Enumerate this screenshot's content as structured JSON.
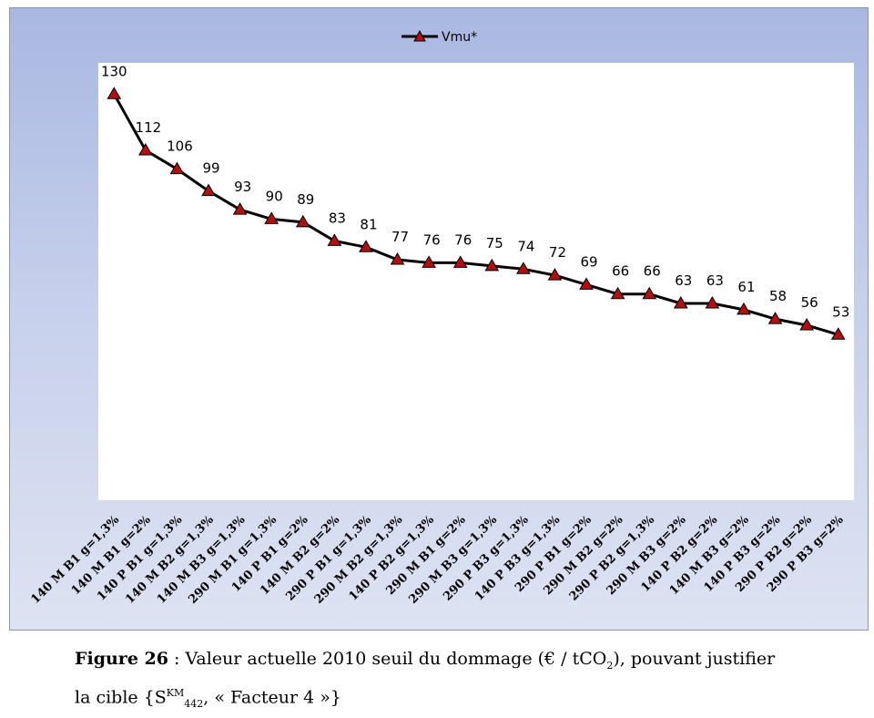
{
  "chart_data": {
    "type": "line",
    "categories": [
      "140 M B1 g=1,3%",
      "140 M B1 g=2%",
      "140 P B1 g=1,3%",
      "140 M B2 g=1,3%",
      "140 M B3 g=1,3%",
      "290 M B1 g=1,3%",
      "140 P B1 g=2%",
      "140 M B2 g=2%",
      "290 P B1 g=1,3%",
      "290 M B2 g=1,3%",
      "140 P B2 g=1,3%",
      "290 M B1 g=2%",
      "290 M B3 g=1,3%",
      "290 P B3 g=1,3%",
      "140 P B3 g=1,3%",
      "290 P B1 g=2%",
      "290 M B2 g=2%",
      "290 P B2 g=1,3%",
      "290 M B3 g=2%",
      "140 P B2 g=2%",
      "140 M B3 g=2%",
      "140 P B3 g=2%",
      "290 P B2 g=2%",
      "290 P B3 g=2%"
    ],
    "series": [
      {
        "name": "Vmu*",
        "values": [
          130,
          112,
          106,
          99,
          93,
          90,
          89,
          83,
          81,
          77,
          76,
          76,
          75,
          74,
          72,
          69,
          66,
          66,
          63,
          63,
          61,
          58,
          56,
          53
        ]
      }
    ],
    "ylim": [
      0,
      140
    ],
    "legend_position": "top-center",
    "grid": false,
    "colors": {
      "line": "#000000",
      "marker": "#b01010",
      "plot_bg": "#ffffff",
      "frame_top": "#a9b8e2",
      "frame_bottom": "#dde3f2"
    }
  },
  "caption": {
    "label": "Figure 26",
    "text_part1": " : Valeur actuelle 2010 seuil du dommage (€ / tCO",
    "sub1": "2",
    "text_part2": "), pouvant justifier",
    "text_line2_a": "la cible {S",
    "sup": "KM",
    "sub2": "442",
    "text_line2_b": ", « Facteur 4 »}"
  }
}
